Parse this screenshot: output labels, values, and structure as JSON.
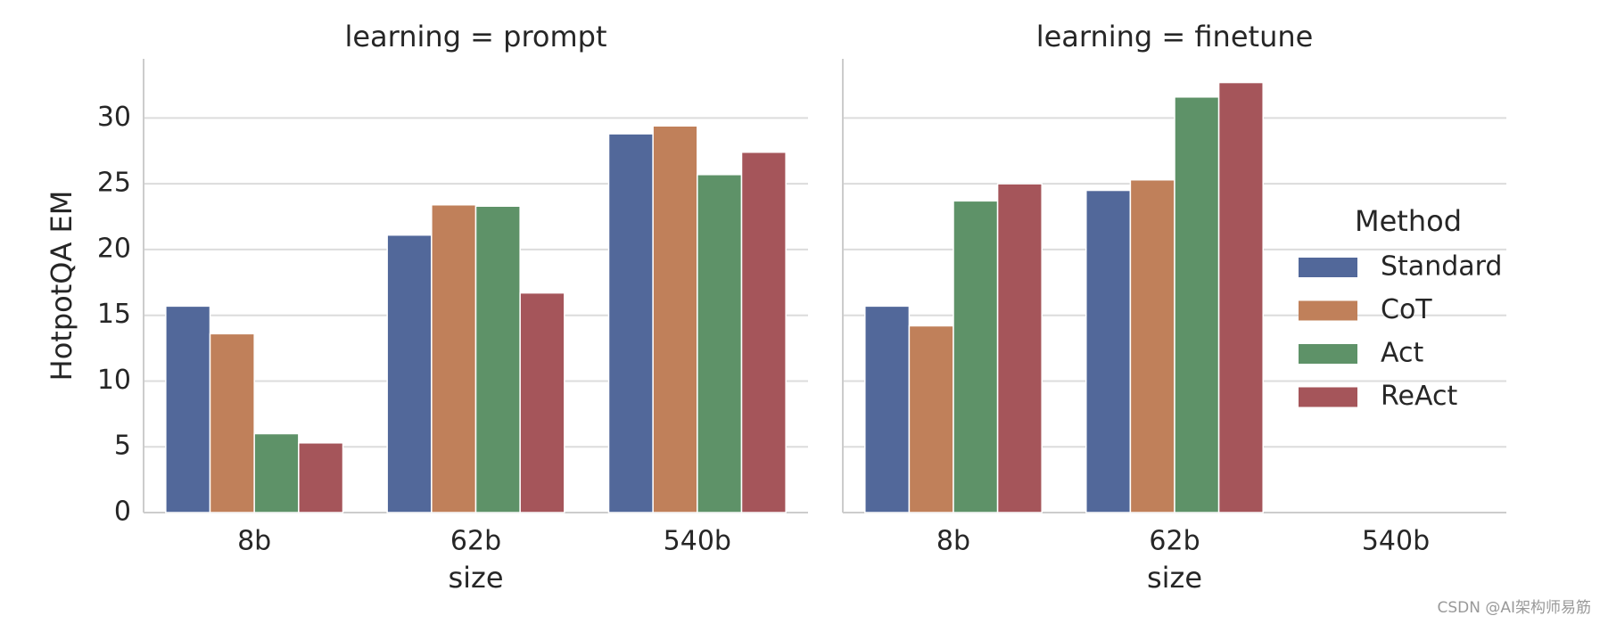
{
  "chart_data": [
    {
      "type": "bar",
      "title": "learning = prompt",
      "x_label": "size",
      "y_label": "HotpotQA EM",
      "categories": [
        "8b",
        "62b",
        "540b"
      ],
      "series": [
        {
          "name": "Standard",
          "color": "#52689a",
          "values": [
            15.7,
            21.1,
            28.8
          ]
        },
        {
          "name": "CoT",
          "color": "#c0805a",
          "values": [
            13.6,
            23.4,
            29.4
          ]
        },
        {
          "name": "Act",
          "color": "#5e9268",
          "values": [
            6.0,
            23.3,
            25.7
          ]
        },
        {
          "name": "ReAct",
          "color": "#a5555a",
          "values": [
            5.3,
            16.7,
            27.4
          ]
        }
      ],
      "ylim": [
        0,
        34.5
      ],
      "yticks": [
        0,
        5,
        10,
        15,
        20,
        25,
        30
      ],
      "grid": true,
      "show_ytick_labels": true
    },
    {
      "type": "bar",
      "title": "learning = finetune",
      "x_label": "size",
      "categories": [
        "8b",
        "62b",
        "540b"
      ],
      "series": [
        {
          "name": "Standard",
          "color": "#52689a",
          "values": [
            15.7,
            24.5,
            null
          ]
        },
        {
          "name": "CoT",
          "color": "#c0805a",
          "values": [
            14.2,
            25.3,
            null
          ]
        },
        {
          "name": "Act",
          "color": "#5e9268",
          "values": [
            23.7,
            31.6,
            null
          ]
        },
        {
          "name": "ReAct",
          "color": "#a5555a",
          "values": [
            25.0,
            32.7,
            null
          ]
        }
      ],
      "ylim": [
        0,
        34.5
      ],
      "yticks": [
        0,
        5,
        10,
        15,
        20,
        25,
        30
      ],
      "grid": true,
      "show_ytick_labels": false,
      "legend_title": "Method",
      "legend": "center right"
    }
  ],
  "watermark": "CSDN @AI架构师易筋"
}
